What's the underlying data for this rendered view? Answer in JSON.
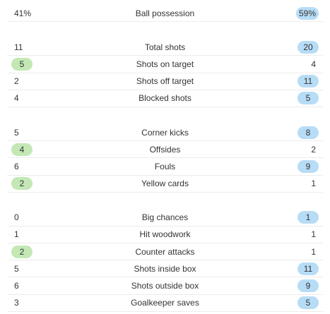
{
  "groups": [
    {
      "rows": [
        {
          "left": "41%",
          "label": "Ball possession",
          "right": "59%",
          "highlight": "right"
        }
      ]
    },
    {
      "rows": [
        {
          "left": "11",
          "label": "Total shots",
          "right": "20",
          "highlight": "right"
        },
        {
          "left": "5",
          "label": "Shots on target",
          "right": "4",
          "highlight": "left"
        },
        {
          "left": "2",
          "label": "Shots off target",
          "right": "11",
          "highlight": "right"
        },
        {
          "left": "4",
          "label": "Blocked shots",
          "right": "5",
          "highlight": "right"
        }
      ]
    },
    {
      "rows": [
        {
          "left": "5",
          "label": "Corner kicks",
          "right": "8",
          "highlight": "right"
        },
        {
          "left": "4",
          "label": "Offsides",
          "right": "2",
          "highlight": "left"
        },
        {
          "left": "6",
          "label": "Fouls",
          "right": "9",
          "highlight": "right"
        },
        {
          "left": "2",
          "label": "Yellow cards",
          "right": "1",
          "highlight": "left"
        }
      ]
    },
    {
      "rows": [
        {
          "left": "0",
          "label": "Big chances",
          "right": "1",
          "highlight": "right"
        },
        {
          "left": "1",
          "label": "Hit woodwork",
          "right": "1",
          "highlight": null
        },
        {
          "left": "2",
          "label": "Counter attacks",
          "right": "1",
          "highlight": "left"
        },
        {
          "left": "5",
          "label": "Shots inside box",
          "right": "11",
          "highlight": "right"
        },
        {
          "left": "6",
          "label": "Shots outside box",
          "right": "9",
          "highlight": "right"
        },
        {
          "left": "3",
          "label": "Goalkeeper saves",
          "right": "5",
          "highlight": "right"
        }
      ]
    }
  ]
}
